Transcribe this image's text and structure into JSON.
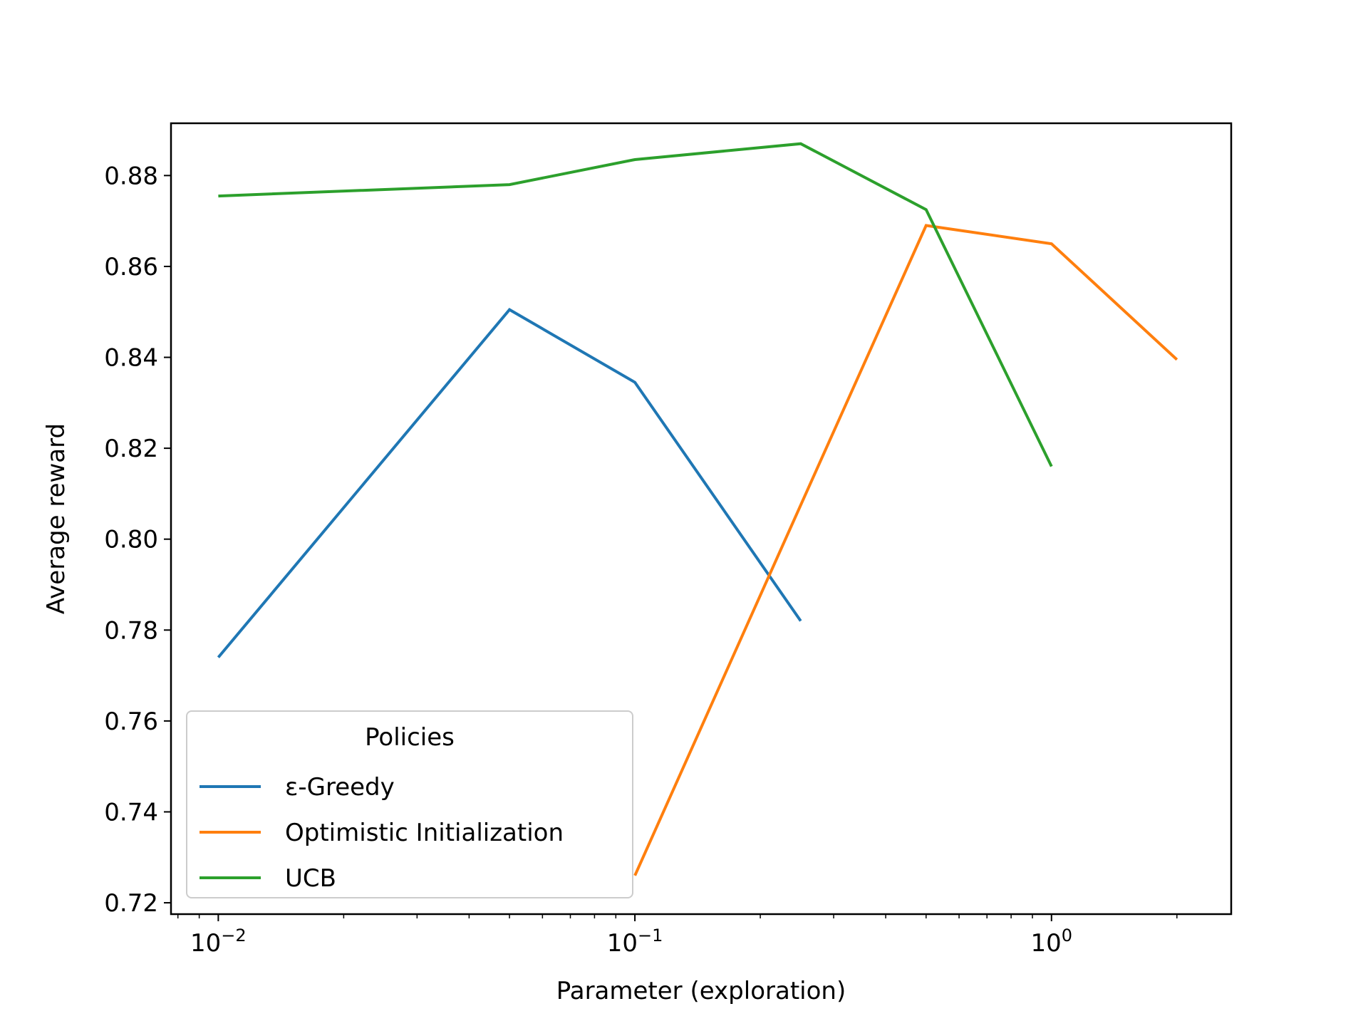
{
  "chart_data": {
    "type": "line",
    "title": "",
    "xlabel": "Parameter (exploration)",
    "ylabel": "Average reward",
    "xscale": "log",
    "xlim": [
      0.0077,
      2.7
    ],
    "ylim": [
      0.7175,
      0.8915
    ],
    "yticks": [
      "0.72",
      "0.74",
      "0.76",
      "0.78",
      "0.80",
      "0.82",
      "0.84",
      "0.86",
      "0.88"
    ],
    "xticks": [
      {
        "base": "10",
        "exp": "−2"
      },
      {
        "base": "10",
        "exp": "−1"
      },
      {
        "base": "10",
        "exp": "0"
      }
    ],
    "grid": false,
    "legend": {
      "title": "Policies",
      "location": "lower-left"
    },
    "series": [
      {
        "name": "ε-Greedy",
        "color": "#1f77b4",
        "x": [
          0.01,
          0.05,
          0.1,
          0.25
        ],
        "y": [
          0.774,
          0.8505,
          0.8345,
          0.782
        ]
      },
      {
        "name": "Optimistic Initialization",
        "color": "#ff7f0e",
        "x": [
          0.1,
          0.25,
          0.5,
          1.0,
          2.0
        ],
        "y": [
          0.726,
          0.8075,
          0.869,
          0.865,
          0.8395
        ]
      },
      {
        "name": "UCB",
        "color": "#2ca02c",
        "x": [
          0.01,
          0.05,
          0.1,
          0.25,
          0.5,
          1.0
        ],
        "y": [
          0.8755,
          0.878,
          0.8835,
          0.887,
          0.8725,
          0.816
        ]
      }
    ]
  }
}
